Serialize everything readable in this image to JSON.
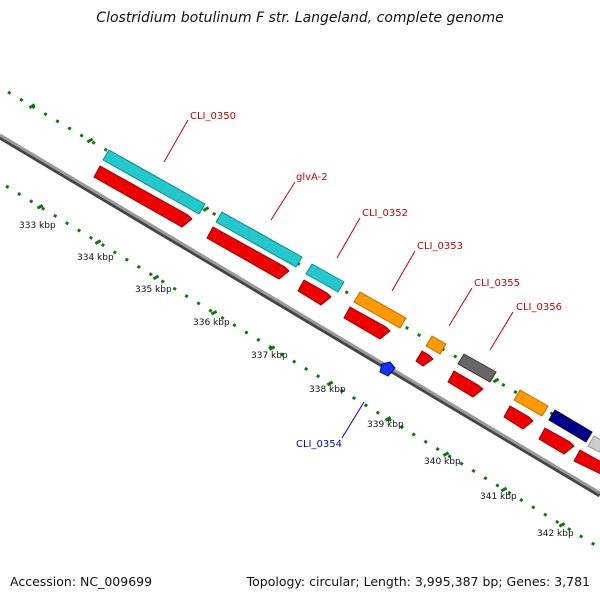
{
  "title": "Clostridium botulinum F str. Langeland, complete genome",
  "footer": {
    "accession": "Accession: NC_009699",
    "summary": "Topology: circular; Length: 3,995,387 bp; Genes: 3,781"
  },
  "scale": {
    "unit": "kbp",
    "ticks": [
      "333 kbp",
      "334 kbp",
      "335 kbp",
      "336 kbp",
      "337 kbp",
      "338 kbp",
      "339 kbp",
      "340 kbp",
      "341 kbp",
      "342 kbp"
    ]
  },
  "colors": {
    "label_red": "#cc0000",
    "label_blue": "#0000cc",
    "cyan": "#22c8cc",
    "red": "#ee0000",
    "orange": "#ff9900",
    "gray": "#666666",
    "navy": "#000088",
    "blue": "#1133ff",
    "light_gray": "#cccccc",
    "backbone": "#808080",
    "tick_green": "#117711"
  },
  "genes": [
    {
      "id": "CLI_0350",
      "label": "CLI_0350",
      "label_color": "#cc0000"
    },
    {
      "id": "glvA-2",
      "label": "glvA-2",
      "label_color": "#cc0000"
    },
    {
      "id": "CLI_0352",
      "label": "CLI_0352",
      "label_color": "#cc0000"
    },
    {
      "id": "CLI_0353",
      "label": "CLI_0353",
      "label_color": "#cc0000"
    },
    {
      "id": "CLI_0355",
      "label": "CLI_0355",
      "label_color": "#cc0000"
    },
    {
      "id": "CLI_0356",
      "label": "CLI_0356",
      "label_color": "#cc0000"
    },
    {
      "id": "CLI_0354",
      "label": "CLI_0354",
      "label_color": "#0000cc"
    }
  ]
}
